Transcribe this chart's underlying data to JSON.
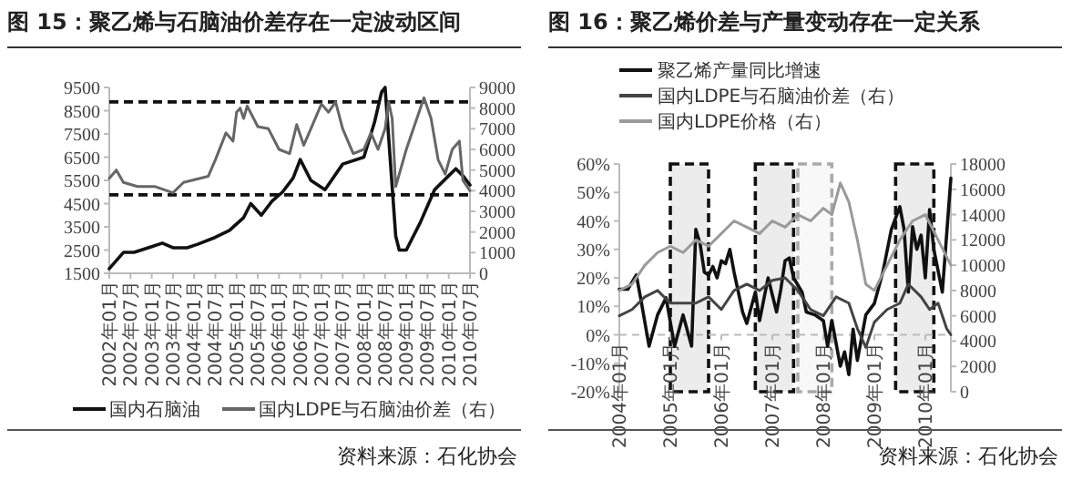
{
  "chart_data": [
    {
      "type": "line",
      "title": "图 15：聚乙烯与石脑油价差存在一定波动区间",
      "legend": "bottom",
      "series": [
        {
          "name": "国内石脑油",
          "color": "#111111",
          "x": [
            "2002-01",
            "2002-05",
            "2002-08",
            "2003-01",
            "2003-04",
            "2003-07",
            "2003-11",
            "2004-02",
            "2004-07",
            "2004-11",
            "2005-03",
            "2005-05",
            "2005-08",
            "2005-11",
            "2006-02",
            "2006-05",
            "2006-07",
            "2006-10",
            "2007-02",
            "2007-07",
            "2008-01",
            "2008-04",
            "2008-06",
            "2008-07",
            "2008-10",
            "2008-11",
            "2009-01",
            "2009-05",
            "2009-07",
            "2009-09",
            "2010-01",
            "2010-03",
            "2010-05",
            "2010-07"
          ],
          "values": [
            1700,
            2400,
            2400,
            2650,
            2800,
            2600,
            2600,
            2750,
            3050,
            3350,
            3900,
            4500,
            4000,
            4600,
            5000,
            5600,
            6400,
            5500,
            5100,
            6200,
            6500,
            8000,
            9300,
            9500,
            3100,
            2500,
            2500,
            3700,
            4400,
            5100,
            5700,
            6000,
            5700,
            5300
          ]
        },
        {
          "name": "国内LDPE与石脑油价差（右）",
          "axis": "y2",
          "color": "#666666",
          "x": [
            "2002-01",
            "2002-03",
            "2002-05",
            "2002-09",
            "2003-02",
            "2003-07",
            "2003-10",
            "2004-05",
            "2004-07",
            "2004-10",
            "2004-12",
            "2005-01",
            "2005-02",
            "2005-03",
            "2005-04",
            "2005-07",
            "2005-10",
            "2006-01",
            "2006-04",
            "2006-06",
            "2006-08",
            "2006-10",
            "2007-01",
            "2007-03",
            "2007-05",
            "2007-07",
            "2007-10",
            "2008-01",
            "2008-03",
            "2008-05",
            "2008-07",
            "2008-08",
            "2008-09",
            "2008-10",
            "2009-01",
            "2009-03",
            "2009-06",
            "2009-08",
            "2009-10",
            "2009-12",
            "2010-02",
            "2010-04",
            "2010-05",
            "2010-07"
          ],
          "values": [
            4600,
            5000,
            4400,
            4200,
            4200,
            3900,
            4400,
            4700,
            5500,
            6800,
            6400,
            7800,
            8000,
            7500,
            8100,
            7100,
            7000,
            6000,
            5800,
            7200,
            6200,
            7000,
            8200,
            7800,
            8300,
            7000,
            5800,
            6000,
            6800,
            6000,
            7000,
            8300,
            7500,
            4200,
            6000,
            7000,
            8500,
            7500,
            5500,
            4800,
            6000,
            6400,
            4500,
            4000
          ]
        }
      ],
      "xticks": [
        {
          "value": "2002-01",
          "label": "2002年01月"
        },
        {
          "value": "2002-07",
          "label": "2002年07月"
        },
        {
          "value": "2003-01",
          "label": "2003年01月"
        },
        {
          "value": "2003-07",
          "label": "2003年07月"
        },
        {
          "value": "2004-01",
          "label": "2004年01月"
        },
        {
          "value": "2004-07",
          "label": "2004年07月"
        },
        {
          "value": "2005-01",
          "label": "2005年01月"
        },
        {
          "value": "2005-07",
          "label": "2005年07月"
        },
        {
          "value": "2006-01",
          "label": "2006年01月"
        },
        {
          "value": "2006-07",
          "label": "2006年07月"
        },
        {
          "value": "2007-01",
          "label": "2007年01月"
        },
        {
          "value": "2007-07",
          "label": "2007年07月"
        },
        {
          "value": "2008-01",
          "label": "2008年01月"
        },
        {
          "value": "2008-07",
          "label": "2008年07月"
        },
        {
          "value": "2009-01",
          "label": "2009年01月"
        },
        {
          "value": "2009-07",
          "label": "2009年07月"
        },
        {
          "value": "2010-01",
          "label": "2010年01月"
        },
        {
          "value": "2010-07",
          "label": "2010年07月"
        }
      ],
      "xlim": [
        "2002-01",
        "2010-07"
      ],
      "ylim": [
        1500,
        9500
      ],
      "yticks": [
        1500,
        2500,
        3500,
        4500,
        5500,
        6500,
        7500,
        8500,
        9500
      ],
      "y2lim": [
        0,
        9000
      ],
      "y2ticks": [
        0,
        1000,
        2000,
        3000,
        4000,
        5000,
        6000,
        7000,
        8000,
        9000
      ],
      "ref_lines": [
        {
          "axis": "y2",
          "value": 8300,
          "label": null,
          "color": "#111111",
          "line_style": "dashed"
        },
        {
          "axis": "y2",
          "value": 3800,
          "label": null,
          "color": "#111111",
          "line_style": "dashed"
        }
      ],
      "annotations": [
        "资料来源：石化协会"
      ]
    },
    {
      "type": "line",
      "title": "图 16：聚乙烯价差与产量变动存在一定关系",
      "legend": "top left",
      "series": [
        {
          "name": "聚乙烯产量同比增速",
          "color": "#111111",
          "x": [
            "2004-01",
            "2004-03",
            "2004-05",
            "2004-06",
            "2004-08",
            "2004-10",
            "2004-12",
            "2005-02",
            "2005-04",
            "2005-06",
            "2005-07",
            "2005-08",
            "2005-09",
            "2005-10",
            "2005-11",
            "2005-12",
            "2006-01",
            "2006-02",
            "2006-03",
            "2006-04",
            "2006-05",
            "2006-06",
            "2006-07",
            "2006-09",
            "2006-10",
            "2006-12",
            "2007-02",
            "2007-03",
            "2007-04",
            "2007-05",
            "2007-06",
            "2007-08",
            "2007-09",
            "2007-11",
            "2008-01",
            "2008-02",
            "2008-03",
            "2008-05",
            "2008-06",
            "2008-07",
            "2008-08",
            "2008-09",
            "2008-10",
            "2008-11",
            "2009-01",
            "2009-03",
            "2009-05",
            "2009-07",
            "2009-08",
            "2009-09",
            "2009-10",
            "2009-11",
            "2009-12",
            "2010-01",
            "2010-02",
            "2010-03",
            "2010-05",
            "2010-07"
          ],
          "values": [
            16,
            16,
            21,
            13,
            -4,
            7,
            13,
            -4,
            7,
            -4,
            37,
            32,
            22,
            21,
            24,
            20,
            26,
            25,
            30,
            22,
            15,
            8,
            4,
            15,
            5,
            20,
            8,
            16,
            26,
            27,
            20,
            15,
            8,
            7,
            5,
            -4,
            5,
            -11,
            -6,
            -14,
            2,
            -9,
            -1,
            7,
            11,
            22,
            37,
            45,
            37,
            15,
            38,
            30,
            35,
            20,
            44,
            30,
            15,
            55
          ]
        },
        {
          "name": "国内LDPE与石脑油价差（右）",
          "axis": "y2",
          "color": "#444444",
          "x": [
            "2004-01",
            "2004-04",
            "2004-07",
            "2004-10",
            "2005-01",
            "2005-04",
            "2005-07",
            "2005-10",
            "2006-01",
            "2006-04",
            "2006-07",
            "2006-10",
            "2007-01",
            "2007-04",
            "2007-07",
            "2007-10",
            "2008-01",
            "2008-04",
            "2008-07",
            "2008-09",
            "2008-11",
            "2009-01",
            "2009-04",
            "2009-07",
            "2009-09",
            "2009-12",
            "2010-02",
            "2010-04",
            "2010-06",
            "2010-07"
          ],
          "values": [
            6000,
            6500,
            7500,
            8000,
            7000,
            7000,
            7000,
            7500,
            6500,
            8000,
            8500,
            8000,
            8800,
            9000,
            8000,
            6500,
            6000,
            7500,
            7000,
            5000,
            3500,
            5500,
            6500,
            7000,
            8500,
            7500,
            6500,
            7000,
            5000,
            4500
          ]
        },
        {
          "name": "国内LDPE价格（右）",
          "axis": "y2",
          "color": "#9a9a9a",
          "x": [
            "2004-01",
            "2004-04",
            "2004-07",
            "2004-10",
            "2005-01",
            "2005-04",
            "2005-07",
            "2005-10",
            "2006-01",
            "2006-04",
            "2006-07",
            "2006-10",
            "2007-01",
            "2007-04",
            "2007-07",
            "2007-10",
            "2008-01",
            "2008-03",
            "2008-05",
            "2008-07",
            "2008-09",
            "2008-11",
            "2009-01",
            "2009-04",
            "2009-07",
            "2009-10",
            "2010-01",
            "2010-04",
            "2010-07"
          ],
          "values": [
            8000,
            8500,
            10000,
            11000,
            11500,
            11000,
            12000,
            11500,
            12500,
            13500,
            13000,
            12500,
            13500,
            13000,
            14000,
            13500,
            14500,
            14000,
            16500,
            15000,
            12000,
            8500,
            8000,
            10000,
            12000,
            13500,
            14000,
            12000,
            10000
          ]
        }
      ],
      "xticks": [
        {
          "value": "2004-01",
          "label": "2004年01月"
        },
        {
          "value": "2005-01",
          "label": "2005年01月"
        },
        {
          "value": "2006-01",
          "label": "2006年01月"
        },
        {
          "value": "2007-01",
          "label": "2007年01月"
        },
        {
          "value": "2008-01",
          "label": "2008年01月"
        },
        {
          "value": "2009-01",
          "label": "2009年01月"
        },
        {
          "value": "2010-01",
          "label": "2010年01月"
        }
      ],
      "xlim": [
        "2004-01",
        "2010-07"
      ],
      "ylim": [
        -20,
        60
      ],
      "yticks": [
        {
          "value": -20,
          "label": "-20%"
        },
        {
          "value": -10,
          "label": "-10%"
        },
        {
          "value": 0,
          "label": "0%"
        },
        {
          "value": 10,
          "label": "10%"
        },
        {
          "value": 20,
          "label": "20%"
        },
        {
          "value": 30,
          "label": "30%"
        },
        {
          "value": 40,
          "label": "40%"
        },
        {
          "value": 50,
          "label": "50%"
        },
        {
          "value": 60,
          "label": "60%"
        }
      ],
      "y2lim": [
        0,
        18000
      ],
      "y2ticks": [
        0,
        2000,
        4000,
        6000,
        8000,
        10000,
        12000,
        14000,
        16000,
        18000
      ],
      "bands": [
        {
          "axis": "x",
          "from": "2005-01",
          "to": "2005-10",
          "label": null,
          "color": "#111111"
        },
        {
          "axis": "x",
          "from": "2006-09",
          "to": "2007-06",
          "label": null,
          "color": "#111111"
        },
        {
          "axis": "x",
          "from": "2007-07",
          "to": "2008-03",
          "label": null,
          "color": "#aaaaaa"
        },
        {
          "axis": "x",
          "from": "2009-06",
          "to": "2010-03",
          "label": null,
          "color": "#111111"
        }
      ],
      "annotations": [
        "资料来源：石化协会"
      ]
    }
  ]
}
